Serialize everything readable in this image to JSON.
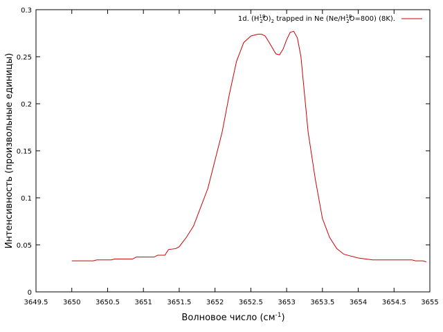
{
  "chart_data": {
    "type": "line",
    "xlabel": "Волновое число (см",
    "xlabel_sup": "-1",
    "xlabel_end": ")",
    "ylabel": "Интенсивность (произвольные единицы)",
    "xlim": [
      3649.5,
      3655
    ],
    "ylim": [
      0,
      0.3
    ],
    "xticks": [
      "3649.5",
      "3650",
      "3650.5",
      "3651",
      "3651.5",
      "3652",
      "3652.5",
      "3653",
      "3653.5",
      "3654",
      "3654.5",
      "3655"
    ],
    "xtick_values": [
      3649.5,
      3650,
      3650.5,
      3651,
      3651.5,
      3652,
      3652.5,
      3653,
      3653.5,
      3654,
      3654.5,
      3655
    ],
    "yticks": [
      "0",
      "0.05",
      "0.1",
      "0.15",
      "0.2",
      "0.25",
      "0.3"
    ],
    "ytick_values": [
      0,
      0.05,
      0.1,
      0.15,
      0.2,
      0.25,
      0.3
    ],
    "legend_position": "top-right",
    "line_color": "#cc0000",
    "series": [
      {
        "name": "1d. (H218O)2 trapped in Ne (Ne/H218O=800) (8K).",
        "x": [
          3650.0,
          3650.3,
          3650.35,
          3650.55,
          3650.6,
          3650.85,
          3650.9,
          3651.15,
          3651.2,
          3651.3,
          3651.35,
          3651.45,
          3651.5,
          3651.6,
          3651.7,
          3651.8,
          3651.9,
          3652.0,
          3652.1,
          3652.2,
          3652.3,
          3652.4,
          3652.5,
          3652.6,
          3652.65,
          3652.7,
          3652.75,
          3652.85,
          3652.9,
          3652.95,
          3653.0,
          3653.05,
          3653.1,
          3653.15,
          3653.2,
          3653.25,
          3653.3,
          3653.4,
          3653.5,
          3653.6,
          3653.7,
          3653.8,
          3653.9,
          3654.0,
          3654.1,
          3654.2,
          3654.3,
          3654.5,
          3654.75,
          3654.8,
          3654.9,
          3654.95
        ],
        "y": [
          0.033,
          0.033,
          0.034,
          0.034,
          0.035,
          0.035,
          0.037,
          0.037,
          0.039,
          0.039,
          0.045,
          0.046,
          0.048,
          0.058,
          0.07,
          0.09,
          0.11,
          0.14,
          0.17,
          0.21,
          0.245,
          0.265,
          0.272,
          0.274,
          0.274,
          0.272,
          0.266,
          0.253,
          0.252,
          0.258,
          0.268,
          0.276,
          0.277,
          0.27,
          0.25,
          0.21,
          0.17,
          0.12,
          0.078,
          0.058,
          0.046,
          0.04,
          0.038,
          0.036,
          0.035,
          0.034,
          0.034,
          0.034,
          0.034,
          0.033,
          0.033,
          0.032
        ]
      }
    ],
    "legend_label": {
      "prefix": "1d. (H",
      "sub1": "2",
      "sup1": "18",
      "mid1": "O)",
      "sub2": "2",
      "mid2": " trapped in Ne (Ne/H",
      "sub3": "2",
      "sup2": "18",
      "suffix": "O=800) (8K)."
    }
  }
}
